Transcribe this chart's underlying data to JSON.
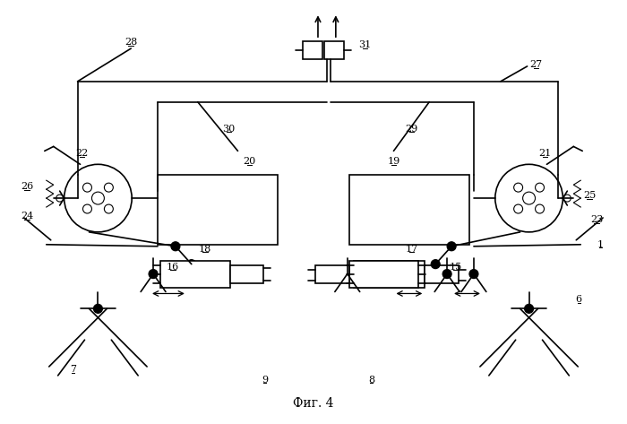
{
  "title": "Фиг. 4",
  "bg_color": "#ffffff",
  "fig_width": 7.0,
  "fig_height": 4.73,
  "dpi": 100
}
